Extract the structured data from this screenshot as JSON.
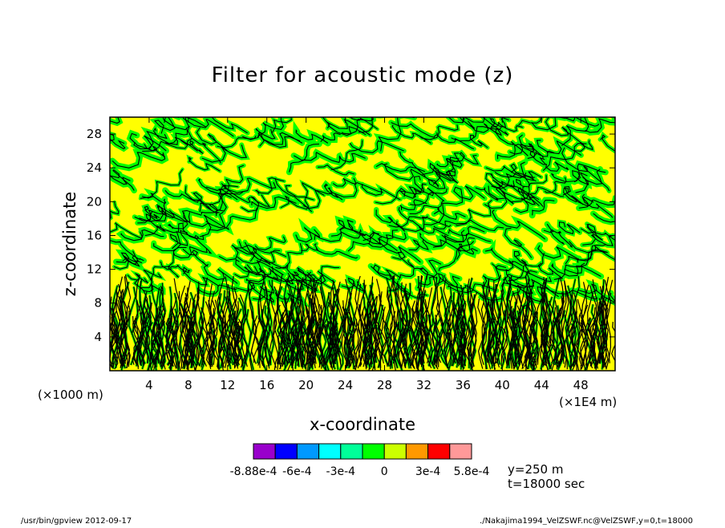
{
  "chart_data": {
    "type": "heatmap",
    "title": "Filter for acoustic mode (z)",
    "xlabel": "x-coordinate",
    "ylabel": "z-coordinate",
    "x_unit_label": "(×1E4 m)",
    "y_unit_label": "(×1000 m)",
    "xlim": [
      0,
      51.5
    ],
    "ylim": [
      0,
      30
    ],
    "x_ticks": [
      "4",
      "8",
      "12",
      "16",
      "20",
      "24",
      "28",
      "32",
      "36",
      "40",
      "44",
      "48"
    ],
    "y_ticks": [
      "4",
      "8",
      "12",
      "16",
      "20",
      "24",
      "28"
    ],
    "x_tick_values": [
      4,
      8,
      12,
      16,
      20,
      24,
      28,
      32,
      36,
      40,
      44,
      48
    ],
    "y_tick_values": [
      4,
      8,
      12,
      16,
      20,
      24,
      28
    ],
    "field_colors": [
      "#00ff00",
      "#ffff00",
      "#00ff00"
    ],
    "contour_color": "#000000",
    "colorbar": {
      "colors": [
        "#9900cc",
        "#0000ff",
        "#0099ff",
        "#00ffff",
        "#00ff99",
        "#00ff00",
        "#ccff00",
        "#ff9900",
        "#ff0000",
        "#ff9999"
      ],
      "labels": [
        "-8.88e-4",
        "-6e-4",
        "-3e-4",
        "0",
        "3e-4",
        "5.8e-4"
      ],
      "label_fractions": [
        0.0,
        0.2,
        0.4,
        0.6,
        0.8,
        1.0
      ]
    },
    "info_lines": [
      "y=250 m",
      "t=18000 sec"
    ]
  },
  "footer": {
    "left": "/usr/bin/gpview   2012-09-17",
    "right": "./Nakajima1994_VelZSWF.nc@VelZSWF,y=0,t=18000"
  }
}
